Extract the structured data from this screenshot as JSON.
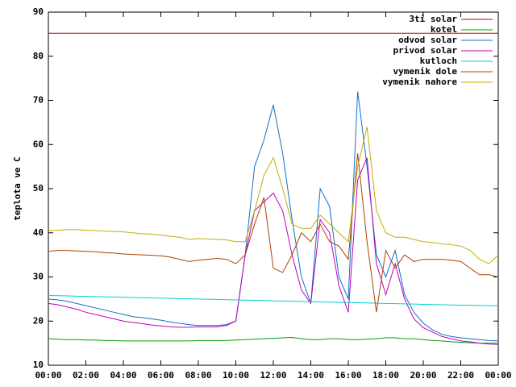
{
  "chart_data": {
    "type": "line",
    "ylabel": "teplota ve C",
    "x": [
      0,
      0.5,
      1,
      1.5,
      2,
      2.5,
      3,
      3.5,
      4,
      4.5,
      5,
      5.5,
      6,
      6.5,
      7,
      7.5,
      8,
      8.5,
      9,
      9.5,
      10,
      10.5,
      11,
      11.5,
      12,
      12.5,
      13,
      13.5,
      14,
      14.5,
      15,
      15.5,
      16,
      16.5,
      17,
      17.5,
      18,
      18.5,
      19,
      19.5,
      20,
      20.5,
      21,
      21.5,
      22,
      22.5,
      23,
      23.5,
      24
    ],
    "xlim": [
      0,
      24
    ],
    "xticks": [
      {
        "value": 0,
        "label": "00:00"
      },
      {
        "value": 2,
        "label": "02:00"
      },
      {
        "value": 4,
        "label": "04:00"
      },
      {
        "value": 6,
        "label": "06:00"
      },
      {
        "value": 8,
        "label": "08:00"
      },
      {
        "value": 10,
        "label": "10:00"
      },
      {
        "value": 12,
        "label": "12:00"
      },
      {
        "value": 14,
        "label": "14:00"
      },
      {
        "value": 16,
        "label": "16:00"
      },
      {
        "value": 18,
        "label": "18:00"
      },
      {
        "value": 20,
        "label": "20:00"
      },
      {
        "value": 22,
        "label": "22:00"
      },
      {
        "value": 24,
        "label": "00:00"
      }
    ],
    "ylim": [
      10,
      90
    ],
    "yticks": [
      10,
      20,
      30,
      40,
      50,
      60,
      70,
      80,
      90
    ],
    "legend": "top-right",
    "series": [
      {
        "name": "3ti solar",
        "color": "#cc0000",
        "values": [
          85.2,
          85.2,
          85.2,
          85.2,
          85.2,
          85.2,
          85.2,
          85.2,
          85.2,
          85.2,
          85.2,
          85.2,
          85.2,
          85.2,
          85.2,
          85.2,
          85.2,
          85.2,
          85.2,
          85.2,
          85.2,
          85.2,
          85.2,
          85.2,
          85.2,
          85.2,
          85.2,
          85.2,
          85.2,
          85.2,
          85.2,
          85.2,
          85.2,
          85.2,
          85.2,
          85.2,
          85.2,
          85.2,
          85.2,
          85.2,
          85.2,
          85.2,
          85.2,
          85.2,
          85.2,
          85.2,
          85.2,
          85.2,
          85.2
        ]
      },
      {
        "name": "kotel",
        "color": "#00a000",
        "values": [
          16,
          15.9,
          15.8,
          15.8,
          15.7,
          15.7,
          15.6,
          15.6,
          15.5,
          15.5,
          15.5,
          15.5,
          15.5,
          15.5,
          15.5,
          15.5,
          15.6,
          15.6,
          15.6,
          15.6,
          15.7,
          15.8,
          15.9,
          16,
          16.1,
          16.2,
          16.3,
          16,
          15.8,
          15.8,
          16,
          16,
          15.8,
          15.8,
          15.9,
          16,
          16.2,
          16.2,
          16,
          16,
          15.8,
          15.6,
          15.5,
          15.3,
          15.2,
          15.1,
          15,
          15,
          15
        ]
      },
      {
        "name": "odvod solar",
        "color": "#1070c8",
        "values": [
          25,
          24.8,
          24.5,
          24,
          23.5,
          23,
          22.5,
          22,
          21.5,
          21,
          20.8,
          20.5,
          20.2,
          19.8,
          19.5,
          19.2,
          19,
          19,
          19,
          19.2,
          20,
          35,
          55,
          61,
          69,
          58,
          43,
          30,
          24,
          50,
          46,
          30,
          25,
          72,
          55,
          35,
          30,
          36,
          26,
          22,
          19.5,
          18,
          17,
          16.5,
          16.2,
          16,
          15.8,
          15.6,
          15.5
        ]
      },
      {
        "name": "privod solar",
        "color": "#c000c0",
        "values": [
          24,
          23.7,
          23.2,
          22.7,
          22,
          21.5,
          21,
          20.5,
          20,
          19.7,
          19.4,
          19.1,
          18.9,
          18.7,
          18.6,
          18.6,
          18.7,
          18.7,
          18.7,
          19,
          20,
          35,
          45,
          47,
          49,
          45,
          35,
          27,
          24,
          43,
          40,
          28,
          22,
          52,
          57,
          33,
          26,
          33,
          25,
          20.5,
          18.5,
          17.5,
          16.5,
          16,
          15.5,
          15.3,
          15,
          14.8,
          14.7
        ]
      },
      {
        "name": "kutloch",
        "color": "#00d0d0",
        "values": [
          25.8,
          25.75,
          25.7,
          25.65,
          25.6,
          25.55,
          25.5,
          25.45,
          25.4,
          25.35,
          25.3,
          25.25,
          25.2,
          25.15,
          25.1,
          25.05,
          25,
          24.95,
          24.9,
          24.85,
          24.8,
          24.75,
          24.7,
          24.65,
          24.6,
          24.55,
          24.5,
          24.45,
          24.4,
          24.35,
          24.3,
          24.25,
          24.2,
          24.15,
          24.1,
          24.05,
          24,
          23.95,
          23.9,
          23.85,
          23.8,
          23.75,
          23.7,
          23.65,
          23.6,
          23.6,
          23.55,
          23.5,
          23.5
        ]
      },
      {
        "name": "vymenik dole",
        "color": "#b04000",
        "values": [
          35.8,
          36,
          36,
          35.9,
          35.8,
          35.7,
          35.5,
          35.4,
          35.2,
          35.1,
          35,
          34.9,
          34.8,
          34.5,
          34,
          33.5,
          33.8,
          34,
          34.2,
          34,
          33,
          35,
          42,
          48,
          32,
          31,
          35,
          40,
          38,
          42,
          38,
          37,
          34,
          58,
          38,
          22,
          36,
          32,
          35,
          33.5,
          34,
          34,
          34,
          33.8,
          33.5,
          32,
          30.5,
          30.5,
          30
        ]
      },
      {
        "name": "vymenik nahore",
        "color": "#c0b000",
        "values": [
          40.5,
          40.6,
          40.7,
          40.7,
          40.6,
          40.5,
          40.4,
          40.3,
          40.2,
          40,
          39.8,
          39.7,
          39.5,
          39.2,
          39,
          38.5,
          38.7,
          38.6,
          38.5,
          38.4,
          38,
          38,
          45,
          53,
          57,
          50,
          42,
          41,
          41,
          44,
          42,
          40,
          38,
          55,
          64,
          45,
          40,
          39,
          39,
          38.5,
          38,
          37.8,
          37.5,
          37.3,
          37,
          36,
          34,
          33,
          35
        ]
      }
    ]
  }
}
